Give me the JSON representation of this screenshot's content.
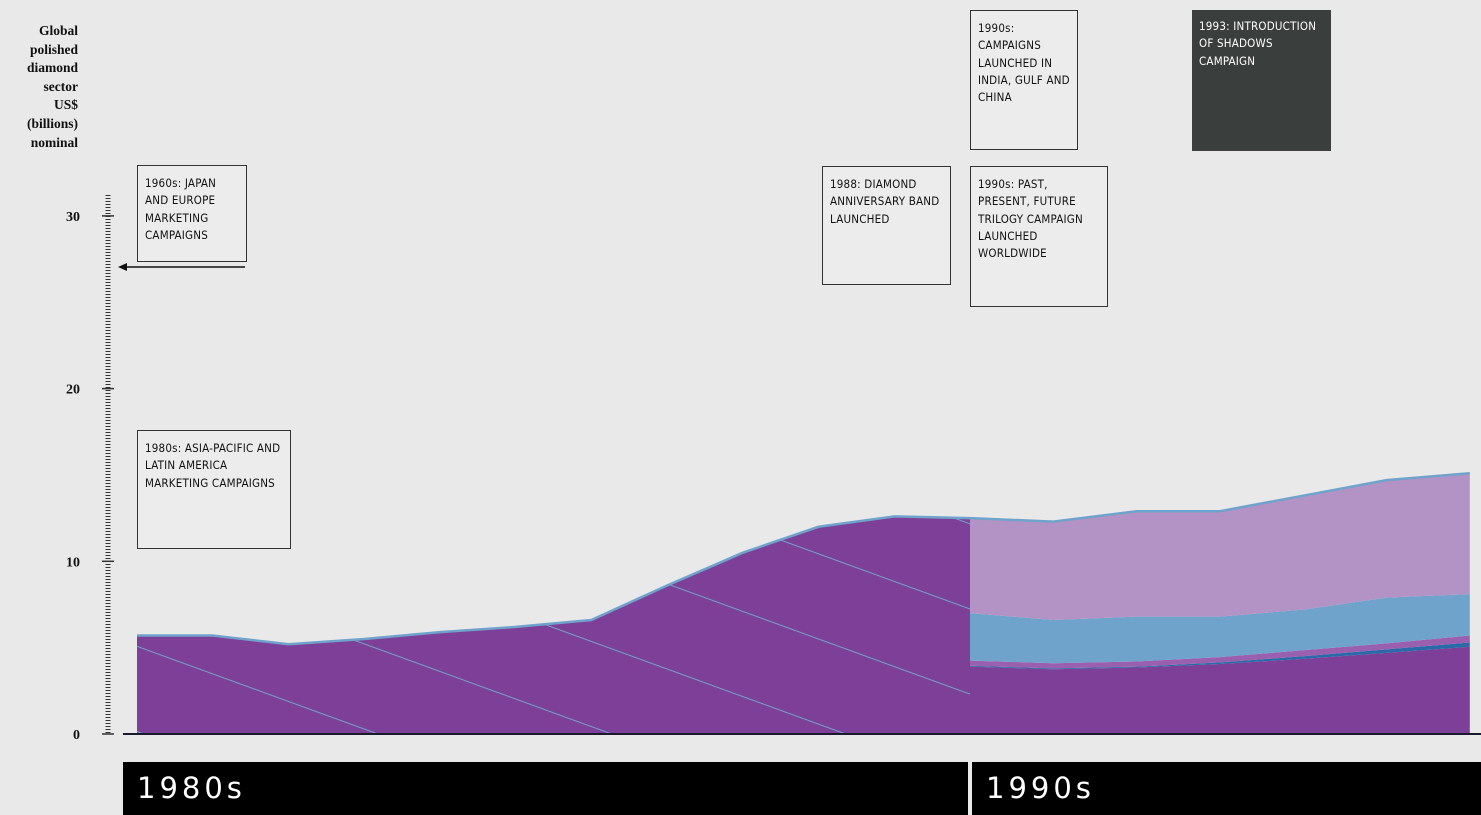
{
  "chart_data": {
    "type": "area",
    "ylabel": "Global polished diamond sector US$ (billions) nominal",
    "ylim": [
      0,
      31.5
    ],
    "yticks": [
      0,
      10,
      20,
      30
    ],
    "periods": [
      {
        "label": "1980s",
        "color": "#7e3f98",
        "hatch": true,
        "values": [
          5.7,
          5.7,
          5.2,
          5.5,
          5.9,
          6.2,
          6.6,
          8.6,
          10.5,
          12.0,
          12.6,
          12.5
        ]
      },
      {
        "label": "1990s",
        "series": [
          {
            "color": "#7e3f98",
            "values": [
              3.9,
              3.75,
              3.85,
              4.05,
              4.35,
              4.7,
              5.05
            ]
          },
          {
            "color": "#2a6aa8",
            "values": [
              0.05,
              0.05,
              0.05,
              0.1,
              0.15,
              0.2,
              0.25
            ]
          },
          {
            "color": "#9b5fb0",
            "values": [
              0.3,
              0.3,
              0.3,
              0.3,
              0.35,
              0.35,
              0.4
            ]
          },
          {
            "color": "#6fa3cc",
            "values": [
              2.75,
              2.5,
              2.6,
              2.35,
              2.35,
              2.65,
              2.4
            ]
          },
          {
            "color": "#b393c5",
            "values": [
              5.5,
              5.7,
              6.1,
              6.1,
              6.6,
              6.8,
              7.0
            ]
          }
        ]
      }
    ],
    "annotations": [
      {
        "text": "1960s: JAPAN AND EUROPE MARKETING CAMPAIGNS"
      },
      {
        "text": "1980s: ASIA-PACIFIC AND LATIN AMERICA MARKETING CAMPAIGNS"
      },
      {
        "text": "1988: DIAMOND ANNIVERSARY BAND LAUNCHED"
      },
      {
        "text": "1990s: CAMPAIGNS LAUNCHED IN INDIA, GULF AND CHINA"
      },
      {
        "text": "1990s: PAST, PRESENT, FUTURE TRILOGY CAMPAIGN LAUNCHED WORLDWIDE"
      },
      {
        "text": "1993: INTRODUCTION OF SHADOWS CAMPAIGN"
      }
    ]
  }
}
